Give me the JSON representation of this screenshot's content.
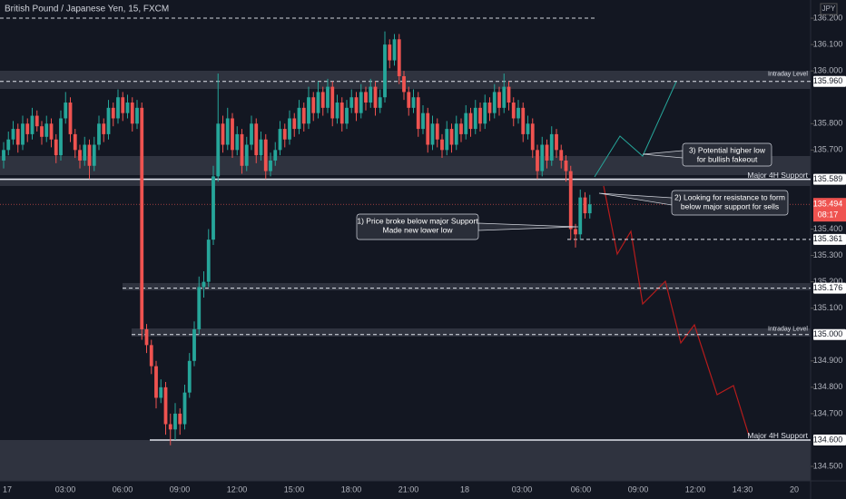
{
  "chart_data": {
    "type": "candlestick",
    "title": "British Pound / Japanese Yen, 15, FXCM",
    "currency": "JPY",
    "up_color": "#26a69a",
    "down_color": "#ef5350",
    "ylim": [
      134.445,
      136.269
    ],
    "yticks": [
      {
        "value": 136.2,
        "label": "136.200"
      },
      {
        "value": 136.1,
        "label": "136.100"
      },
      {
        "value": 136.0,
        "label": "136.000"
      },
      {
        "value": 135.8,
        "label": "135.800"
      },
      {
        "value": 135.7,
        "label": "135.700"
      },
      {
        "value": 135.4,
        "label": "135.400"
      },
      {
        "value": 135.3,
        "label": "135.300"
      },
      {
        "value": 135.2,
        "label": "135.200"
      },
      {
        "value": 135.1,
        "label": "135.100"
      },
      {
        "value": 134.9,
        "label": "134.900"
      },
      {
        "value": 134.8,
        "label": "134.800"
      },
      {
        "value": 134.7,
        "label": "134.700"
      },
      {
        "value": 134.5,
        "label": "134.500"
      }
    ],
    "xticks": [
      "17",
      "03:00",
      "06:00",
      "09:00",
      "12:00",
      "15:00",
      "18:00",
      "21:00",
      "18",
      "03:00",
      "06:00",
      "09:00",
      "12:00",
      "14:30",
      "20"
    ],
    "levels": [
      {
        "value": 135.96,
        "label": "135.960",
        "name": "Intraday Level"
      },
      {
        "value": 135.589,
        "label": "135.589",
        "name": "Major 4H Support"
      },
      {
        "value": 135.361,
        "label": "135.361"
      },
      {
        "value": 135.176,
        "label": "135.176"
      },
      {
        "value": 135.0,
        "label": "135.000",
        "name": "Intraday Level"
      },
      {
        "value": 134.6,
        "label": "134.600",
        "name": "Major 4H Support"
      }
    ],
    "countdown": "08:17",
    "annotations": [
      {
        "lines": [
          "1) Price broke below major Support",
          "Made new lower low"
        ]
      },
      {
        "lines": [
          "2) Looking for resistance to form",
          "below major support for sells"
        ]
      },
      {
        "lines": [
          "3) Potential higher low",
          "for bullish fakeout"
        ]
      }
    ],
    "candles": [
      [
        135.66,
        135.73,
        135.63,
        135.7
      ],
      [
        135.7,
        135.77,
        135.68,
        135.74
      ],
      [
        135.74,
        135.81,
        135.72,
        135.78
      ],
      [
        135.78,
        135.8,
        135.69,
        135.72
      ],
      [
        135.72,
        135.83,
        135.7,
        135.8
      ],
      [
        135.8,
        135.82,
        135.73,
        135.76
      ],
      [
        135.76,
        135.86,
        135.74,
        135.83
      ],
      [
        135.83,
        135.85,
        135.77,
        135.79
      ],
      [
        135.79,
        135.81,
        135.72,
        135.75
      ],
      [
        135.75,
        135.83,
        135.73,
        135.8
      ],
      [
        135.8,
        135.82,
        135.71,
        135.74
      ],
      [
        135.74,
        135.76,
        135.65,
        135.68
      ],
      [
        135.68,
        135.85,
        135.66,
        135.82
      ],
      [
        135.82,
        135.92,
        135.8,
        135.88
      ],
      [
        135.88,
        135.9,
        135.73,
        135.76
      ],
      [
        135.76,
        135.78,
        135.67,
        135.7
      ],
      [
        135.7,
        135.72,
        135.63,
        135.66
      ],
      [
        135.66,
        135.75,
        135.64,
        135.72
      ],
      [
        135.72,
        135.74,
        135.59,
        135.64
      ],
      [
        135.64,
        135.75,
        135.62,
        135.72
      ],
      [
        135.72,
        135.83,
        135.7,
        135.8
      ],
      [
        135.8,
        135.82,
        135.73,
        135.76
      ],
      [
        135.76,
        135.89,
        135.74,
        135.86
      ],
      [
        135.86,
        135.88,
        135.79,
        135.82
      ],
      [
        135.82,
        135.93,
        135.8,
        135.9
      ],
      [
        135.9,
        135.92,
        135.81,
        135.84
      ],
      [
        135.84,
        135.91,
        135.82,
        135.88
      ],
      [
        135.88,
        135.9,
        135.77,
        135.8
      ],
      [
        135.8,
        135.89,
        135.78,
        135.86
      ],
      [
        135.86,
        135.88,
        134.98,
        135.02
      ],
      [
        135.02,
        135.04,
        134.93,
        134.96
      ],
      [
        134.96,
        134.98,
        134.85,
        134.88
      ],
      [
        134.88,
        134.9,
        134.72,
        134.76
      ],
      [
        134.76,
        134.83,
        134.74,
        134.8
      ],
      [
        134.8,
        134.82,
        134.62,
        134.66
      ],
      [
        134.66,
        134.7,
        134.58,
        134.64
      ],
      [
        134.64,
        134.74,
        134.6,
        134.7
      ],
      [
        134.7,
        134.72,
        134.62,
        134.66
      ],
      [
        134.66,
        134.81,
        134.64,
        134.78
      ],
      [
        134.78,
        134.93,
        134.76,
        134.9
      ],
      [
        134.9,
        135.05,
        134.88,
        135.02
      ],
      [
        135.02,
        135.22,
        135.0,
        135.18
      ],
      [
        135.18,
        135.24,
        135.14,
        135.2
      ],
      [
        135.2,
        135.4,
        135.18,
        135.36
      ],
      [
        135.36,
        135.64,
        135.34,
        135.6
      ],
      [
        135.6,
        135.99,
        135.58,
        135.8
      ],
      [
        135.8,
        135.83,
        135.69,
        135.72
      ],
      [
        135.72,
        135.86,
        135.7,
        135.82
      ],
      [
        135.82,
        135.84,
        135.67,
        135.7
      ],
      [
        135.7,
        135.79,
        135.68,
        135.76
      ],
      [
        135.76,
        135.78,
        135.61,
        135.64
      ],
      [
        135.64,
        135.75,
        135.62,
        135.72
      ],
      [
        135.72,
        135.83,
        135.7,
        135.8
      ],
      [
        135.8,
        135.82,
        135.65,
        135.68
      ],
      [
        135.68,
        135.77,
        135.66,
        135.74
      ],
      [
        135.74,
        135.76,
        135.59,
        135.62
      ],
      [
        135.62,
        135.69,
        135.6,
        135.66
      ],
      [
        135.66,
        135.73,
        135.64,
        135.7
      ],
      [
        135.7,
        135.81,
        135.68,
        135.78
      ],
      [
        135.78,
        135.8,
        135.71,
        135.74
      ],
      [
        135.74,
        135.85,
        135.72,
        135.82
      ],
      [
        135.82,
        135.84,
        135.75,
        135.78
      ],
      [
        135.78,
        135.89,
        135.76,
        135.86
      ],
      [
        135.86,
        135.88,
        135.77,
        135.8
      ],
      [
        135.8,
        135.94,
        135.78,
        135.9
      ],
      [
        135.9,
        135.92,
        135.81,
        135.84
      ],
      [
        135.84,
        135.96,
        135.82,
        135.92
      ],
      [
        135.92,
        135.94,
        135.83,
        135.86
      ],
      [
        135.86,
        135.97,
        135.84,
        135.94
      ],
      [
        135.94,
        135.96,
        135.79,
        135.82
      ],
      [
        135.82,
        135.91,
        135.8,
        135.88
      ],
      [
        135.88,
        135.9,
        135.77,
        135.8
      ],
      [
        135.8,
        135.89,
        135.78,
        135.86
      ],
      [
        135.86,
        135.93,
        135.84,
        135.9
      ],
      [
        135.9,
        135.92,
        135.81,
        135.84
      ],
      [
        135.84,
        135.95,
        135.82,
        135.92
      ],
      [
        135.92,
        135.94,
        135.85,
        135.88
      ],
      [
        135.88,
        135.97,
        135.86,
        135.94
      ],
      [
        135.94,
        135.96,
        135.83,
        135.86
      ],
      [
        135.86,
        135.93,
        135.84,
        135.9
      ],
      [
        135.9,
        136.15,
        135.88,
        136.1
      ],
      [
        136.1,
        136.12,
        136.01,
        136.04
      ],
      [
        136.04,
        136.14,
        136.02,
        136.12
      ],
      [
        136.12,
        136.14,
        135.95,
        135.98
      ],
      [
        135.98,
        136.0,
        135.89,
        135.92
      ],
      [
        135.92,
        135.94,
        135.83,
        135.86
      ],
      [
        135.86,
        135.93,
        135.84,
        135.9
      ],
      [
        135.9,
        135.92,
        135.75,
        135.78
      ],
      [
        135.78,
        135.87,
        135.76,
        135.84
      ],
      [
        135.84,
        135.86,
        135.69,
        135.72
      ],
      [
        135.72,
        135.83,
        135.7,
        135.8
      ],
      [
        135.8,
        135.82,
        135.71,
        135.74
      ],
      [
        135.74,
        135.76,
        135.67,
        135.7
      ],
      [
        135.7,
        135.81,
        135.68,
        135.78
      ],
      [
        135.78,
        135.8,
        135.69,
        135.72
      ],
      [
        135.72,
        135.83,
        135.7,
        135.8
      ],
      [
        135.8,
        135.82,
        135.73,
        135.76
      ],
      [
        135.76,
        135.87,
        135.74,
        135.84
      ],
      [
        135.84,
        135.86,
        135.75,
        135.78
      ],
      [
        135.78,
        135.89,
        135.76,
        135.86
      ],
      [
        135.86,
        135.88,
        135.77,
        135.8
      ],
      [
        135.8,
        135.91,
        135.78,
        135.88
      ],
      [
        135.88,
        135.9,
        135.81,
        135.84
      ],
      [
        135.84,
        135.95,
        135.82,
        135.92
      ],
      [
        135.92,
        135.94,
        135.83,
        135.86
      ],
      [
        135.86,
        135.99,
        135.84,
        135.94
      ],
      [
        135.94,
        135.96,
        135.85,
        135.88
      ],
      [
        135.88,
        135.9,
        135.79,
        135.82
      ],
      [
        135.82,
        135.89,
        135.8,
        135.86
      ],
      [
        135.86,
        135.88,
        135.73,
        135.76
      ],
      [
        135.76,
        135.83,
        135.74,
        135.8
      ],
      [
        135.8,
        135.82,
        135.67,
        135.7
      ],
      [
        135.7,
        135.72,
        135.59,
        135.62
      ],
      [
        135.62,
        135.75,
        135.6,
        135.72
      ],
      [
        135.72,
        135.74,
        135.63,
        135.66
      ],
      [
        135.66,
        135.79,
        135.64,
        135.76
      ],
      [
        135.76,
        135.78,
        135.67,
        135.7
      ],
      [
        135.7,
        135.72,
        135.63,
        135.66
      ],
      [
        135.66,
        135.68,
        135.58,
        135.62
      ],
      [
        135.62,
        135.64,
        135.36,
        135.4
      ],
      [
        135.4,
        135.42,
        135.33,
        135.38
      ],
      [
        135.38,
        135.55,
        135.36,
        135.52
      ],
      [
        135.52,
        135.54,
        135.44,
        135.46
      ],
      [
        135.46,
        135.53,
        135.44,
        135.494
      ]
    ]
  }
}
